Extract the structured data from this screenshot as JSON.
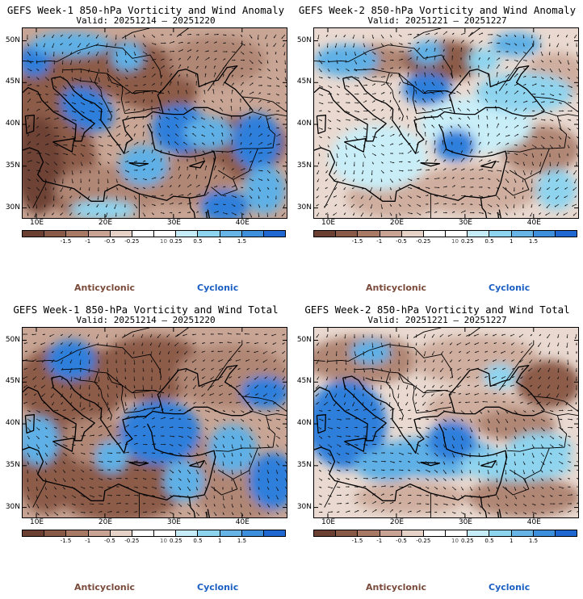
{
  "panels": [
    {
      "title": "GEFS Week-1 850-hPa Vorticity and Wind Anomaly",
      "valid": "Valid: 20251214 – 20251220",
      "variant": 1
    },
    {
      "title": "GEFS Week-2 850-hPa Vorticity and Wind Anomaly",
      "valid": "Valid: 20251221 – 20251227",
      "variant": 2
    },
    {
      "title": "GEFS Week-1 850-hPa Vorticity and Wind Total",
      "valid": "Valid: 20251214 – 20251220",
      "variant": 3
    },
    {
      "title": "GEFS Week-2 850-hPa Vorticity and Wind Total",
      "valid": "Valid: 20251221 – 20251227",
      "variant": 4
    }
  ],
  "lat_labels": [
    "50N",
    "45N",
    "40N",
    "35N",
    "30N"
  ],
  "lon_labels": [
    "10E",
    "20E",
    "30E",
    "40E"
  ],
  "colorbar": {
    "levels": [
      "-1.5",
      "-1",
      "-0.5",
      "-0.25",
      "0.25",
      "0.5",
      "1",
      "1.5"
    ],
    "scale_label": "10",
    "colors": [
      "#6b4032",
      "#8a5a48",
      "#a87a66",
      "#c9a394",
      "#e7d2c8",
      "#ffffff",
      "#ffffff",
      "#c5ecf7",
      "#8dd4ef",
      "#66b5e6",
      "#3e90dc",
      "#1f67d1"
    ]
  },
  "legend": {
    "anticyclonic": "Anticyclonic",
    "cyclonic": "Cyclonic"
  },
  "colors": {
    "anticyclonic": "#7a4a3a",
    "cyclonic": "#1b5fc2",
    "land": "#f4f4f4"
  }
}
